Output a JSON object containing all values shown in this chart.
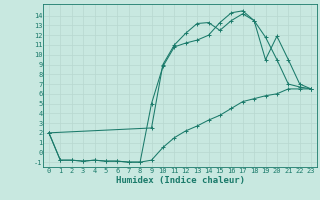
{
  "xlabel": "Humidex (Indice chaleur)",
  "background_color": "#c8e8e0",
  "line_color": "#1a7a6a",
  "xlim": [
    -0.5,
    23.5
  ],
  "ylim": [
    -1.5,
    15.2
  ],
  "yticks": [
    -1,
    0,
    1,
    2,
    3,
    4,
    5,
    6,
    7,
    8,
    9,
    10,
    11,
    12,
    13,
    14
  ],
  "xticks": [
    0,
    1,
    2,
    3,
    4,
    5,
    6,
    7,
    8,
    9,
    10,
    11,
    12,
    13,
    14,
    15,
    16,
    17,
    18,
    19,
    20,
    21,
    22,
    23
  ],
  "line1_x": [
    0,
    1,
    2,
    3,
    4,
    5,
    6,
    7,
    8,
    9,
    10,
    11,
    12,
    13,
    14,
    15,
    16,
    17,
    18,
    19,
    20,
    21,
    22,
    23
  ],
  "line1_y": [
    2.0,
    -0.8,
    -0.8,
    -0.9,
    -0.8,
    -0.9,
    -0.9,
    -1.0,
    -1.0,
    -0.8,
    0.5,
    1.5,
    2.2,
    2.7,
    3.3,
    3.8,
    4.5,
    5.2,
    5.5,
    5.8,
    6.0,
    6.5,
    6.5,
    6.5
  ],
  "line2_x": [
    0,
    1,
    2,
    3,
    4,
    5,
    6,
    7,
    8,
    9,
    10,
    11,
    12,
    13,
    14,
    15,
    16,
    17,
    18,
    19,
    20,
    21,
    22,
    23
  ],
  "line2_y": [
    2.0,
    -0.8,
    -0.8,
    -0.9,
    -0.8,
    -0.9,
    -0.9,
    -1.0,
    -1.0,
    5.0,
    8.8,
    10.8,
    11.2,
    11.5,
    12.0,
    13.3,
    14.3,
    14.5,
    13.5,
    11.8,
    9.5,
    7.0,
    6.7,
    6.5
  ],
  "line3_x": [
    0,
    9,
    10,
    11,
    12,
    13,
    14,
    15,
    16,
    17,
    18,
    19,
    20,
    21,
    22,
    23
  ],
  "line3_y": [
    2.0,
    2.5,
    9.0,
    11.0,
    12.2,
    13.2,
    13.3,
    12.5,
    13.5,
    14.2,
    13.5,
    9.5,
    11.9,
    9.5,
    7.0,
    6.5
  ],
  "grid_color": "#b8d8d0",
  "tick_fontsize": 5.0,
  "xlabel_fontsize": 6.5,
  "marker_size": 2.5,
  "linewidth": 0.75
}
